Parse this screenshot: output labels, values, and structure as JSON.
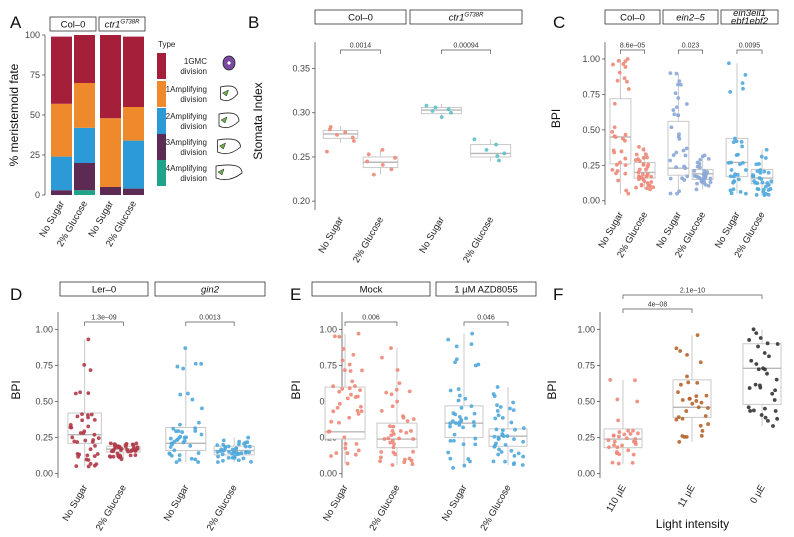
{
  "chart_data": [
    {
      "panel": "A",
      "type": "bar",
      "stacked": true,
      "ylabel": "% meristemoid fate",
      "yticks": [
        0,
        25,
        50,
        75,
        100
      ],
      "ylim": [
        0,
        100
      ],
      "facets": [
        {
          "label": "Col–0",
          "categories": [
            "No Sugar",
            "2% Glucose"
          ]
        },
        {
          "label": "ctr1",
          "label_sup": "G738R",
          "categories": [
            "No Sugar",
            "2% Glucose"
          ]
        }
      ],
      "legend_title": "Type",
      "series": [
        {
          "name": "1GMC division",
          "color": "#a61f3a",
          "values": [
            42,
            30,
            52,
            44
          ]
        },
        {
          "name": "1Amplifying division",
          "color": "#ee8a2c",
          "values": [
            33,
            28,
            43,
            21
          ]
        },
        {
          "name": "2Amplifying division",
          "color": "#2b9ad6",
          "values": [
            21,
            22,
            0,
            30
          ]
        },
        {
          "name": "3Amplifying division",
          "color": "#5c2a52",
          "values": [
            3,
            17,
            5,
            4
          ]
        },
        {
          "name": "4Amplifying division",
          "color": "#1fa38a",
          "values": [
            0,
            3,
            0,
            0
          ]
        }
      ]
    },
    {
      "panel": "B",
      "type": "box",
      "ylabel": "Stomata Index",
      "yticks": [
        "0.20",
        "0.25",
        "0.30",
        "0.35"
      ],
      "ylim": [
        0.19,
        0.38
      ],
      "facets": [
        {
          "label": "Col–0",
          "pvalue": "0.0014",
          "groups": [
            {
              "x": "No Sugar",
              "color": "#ee8778",
              "q1": 0.271,
              "median": 0.276,
              "q3": 0.28,
              "whisker_low": 0.266,
              "whisker_high": 0.285,
              "points": [
                0.256,
                0.268,
                0.272,
                0.275,
                0.278,
                0.281,
                0.284
              ]
            },
            {
              "x": "2% Glucose",
              "color": "#ee8778",
              "q1": 0.238,
              "median": 0.244,
              "q3": 0.25,
              "whisker_low": 0.23,
              "whisker_high": 0.258,
              "points": [
                0.23,
                0.236,
                0.241,
                0.245,
                0.249,
                0.253,
                0.258
              ]
            }
          ]
        },
        {
          "label": "ctr1",
          "label_sup": "G738R",
          "pvalue": "0.00094",
          "groups": [
            {
              "x": "No Sugar",
              "color": "#5cc1c6",
              "q1": 0.299,
              "median": 0.303,
              "q3": 0.306,
              "whisker_low": 0.293,
              "whisker_high": 0.31,
              "points": [
                0.295,
                0.3,
                0.302,
                0.304,
                0.306,
                0.308
              ]
            },
            {
              "x": "2% Glucose",
              "color": "#5cc1c6",
              "q1": 0.25,
              "median": 0.254,
              "q3": 0.264,
              "whisker_low": 0.245,
              "whisker_high": 0.27,
              "points": [
                0.246,
                0.251,
                0.254,
                0.258,
                0.264,
                0.27
              ]
            }
          ]
        }
      ]
    },
    {
      "panel": "C",
      "type": "box",
      "ylabel": "BPI",
      "yticks": [
        "0.00",
        "0.25",
        "0.50",
        "0.75",
        "1.00"
      ],
      "ylim": [
        -0.03,
        1.12
      ],
      "facets": [
        {
          "label": "Col–0",
          "pvalue": "8.6e–05",
          "groups": [
            {
              "x": "No Sugar",
              "color": "#ee8778",
              "q1": 0.26,
              "median": 0.45,
              "q3": 0.72,
              "whisker_low": 0.05,
              "whisker_high": 1.0,
              "n": 30
            },
            {
              "x": "2% Glucose",
              "color": "#ee8778",
              "q1": 0.16,
              "median": 0.2,
              "q3": 0.27,
              "whisker_low": 0.08,
              "whisker_high": 0.38,
              "n": 34
            }
          ]
        },
        {
          "label": "ein2–5",
          "italic": true,
          "pvalue": "0.023",
          "groups": [
            {
              "x": "No Sugar",
              "color": "#8aa7d8",
              "q1": 0.18,
              "median": 0.23,
              "q3": 0.56,
              "whisker_low": 0.05,
              "whisker_high": 0.9,
              "n": 30
            },
            {
              "x": "2% Glucose",
              "color": "#8aa7d8",
              "q1": 0.15,
              "median": 0.19,
              "q3": 0.22,
              "whisker_low": 0.08,
              "whisker_high": 0.32,
              "n": 30
            }
          ]
        },
        {
          "label": "ein3eil1",
          "label2": "ebf1ebf2",
          "italic": true,
          "pvalue": "0.0095",
          "groups": [
            {
              "x": "No Sugar",
              "color": "#4fa8dd",
              "q1": 0.17,
              "median": 0.27,
              "q3": 0.44,
              "whisker_low": 0.05,
              "whisker_high": 0.97,
              "n": 28
            },
            {
              "x": "2% Glucose",
              "color": "#4fa8dd",
              "q1": 0.12,
              "median": 0.16,
              "q3": 0.22,
              "whisker_low": 0.04,
              "whisker_high": 0.36,
              "n": 30
            }
          ]
        }
      ]
    },
    {
      "panel": "D",
      "type": "box",
      "ylabel": "BPI",
      "yticks": [
        "0.00",
        "0.25",
        "0.50",
        "0.75",
        "1.00"
      ],
      "ylim": [
        -0.03,
        1.12
      ],
      "facets": [
        {
          "label": "Ler–0",
          "pvalue": "1.3e–09",
          "groups": [
            {
              "x": "No Sugar",
              "color": "#b03a48",
              "q1": 0.21,
              "median": 0.27,
              "q3": 0.42,
              "whisker_low": 0.05,
              "whisker_high": 0.93,
              "n": 40
            },
            {
              "x": "2% Glucose",
              "color": "#b03a48",
              "q1": 0.15,
              "median": 0.17,
              "q3": 0.19,
              "whisker_low": 0.1,
              "whisker_high": 0.21,
              "n": 40
            }
          ]
        },
        {
          "label": "gin2",
          "italic": true,
          "pvalue": "0.0013",
          "groups": [
            {
              "x": "No Sugar",
              "color": "#4fa8dd",
              "q1": 0.16,
              "median": 0.21,
              "q3": 0.32,
              "whisker_low": 0.08,
              "whisker_high": 0.87,
              "n": 40
            },
            {
              "x": "2% Glucose",
              "color": "#4fa8dd",
              "q1": 0.13,
              "median": 0.16,
              "q3": 0.19,
              "whisker_low": 0.08,
              "whisker_high": 0.25,
              "n": 40
            }
          ]
        }
      ]
    },
    {
      "panel": "E",
      "type": "box",
      "ylabel": "BPI",
      "yticks": [
        "0.00",
        "0.25",
        "0.50",
        "0.75",
        "1.00"
      ],
      "ylim": [
        -0.03,
        1.12
      ],
      "facets": [
        {
          "label": "Mock",
          "pvalue": "0.006",
          "groups": [
            {
              "x": "No Sugar",
              "color": "#ee8778",
              "q1": 0.24,
              "median": 0.29,
              "q3": 0.6,
              "whisker_low": 0.07,
              "whisker_high": 0.97,
              "n": 40
            },
            {
              "x": "2% Glucose",
              "color": "#ee8778",
              "q1": 0.18,
              "median": 0.24,
              "q3": 0.35,
              "whisker_low": 0.06,
              "whisker_high": 0.87,
              "n": 40
            }
          ]
        },
        {
          "label": "1 µM AZD8055",
          "pvalue": "0.046",
          "groups": [
            {
              "x": "No Sugar",
              "color": "#4fa8dd",
              "q1": 0.25,
              "median": 0.35,
              "q3": 0.47,
              "whisker_low": 0.04,
              "whisker_high": 0.97,
              "n": 40
            },
            {
              "x": "2% Glucose",
              "color": "#4fa8dd",
              "q1": 0.19,
              "median": 0.26,
              "q3": 0.31,
              "whisker_low": 0.06,
              "whisker_high": 0.6,
              "n": 40
            }
          ]
        }
      ]
    },
    {
      "panel": "F",
      "type": "box",
      "ylabel": "BPI",
      "xlabel": "Light intensity",
      "yticks": [
        "0.00",
        "0.25",
        "0.50",
        "0.75",
        "1.00"
      ],
      "ylim": [
        -0.03,
        1.12
      ],
      "comparisons": [
        {
          "from": 0,
          "to": 1,
          "pvalue": "4e–08"
        },
        {
          "from": 0,
          "to": 2,
          "pvalue": "2.1e–10"
        }
      ],
      "groups": [
        {
          "x": "110 µE",
          "color": "#ee8778",
          "q1": 0.18,
          "median": 0.24,
          "q3": 0.31,
          "whisker_low": 0.07,
          "whisker_high": 0.65,
          "n": 30
        },
        {
          "x": "11 µE",
          "color": "#b5652e",
          "q1": 0.39,
          "median": 0.46,
          "q3": 0.65,
          "whisker_low": 0.22,
          "whisker_high": 0.96,
          "n": 30
        },
        {
          "x": "0 µE",
          "color": "#333333",
          "q1": 0.48,
          "median": 0.73,
          "q3": 0.9,
          "whisker_low": 0.33,
          "whisker_high": 1.0,
          "n": 30
        }
      ]
    }
  ]
}
